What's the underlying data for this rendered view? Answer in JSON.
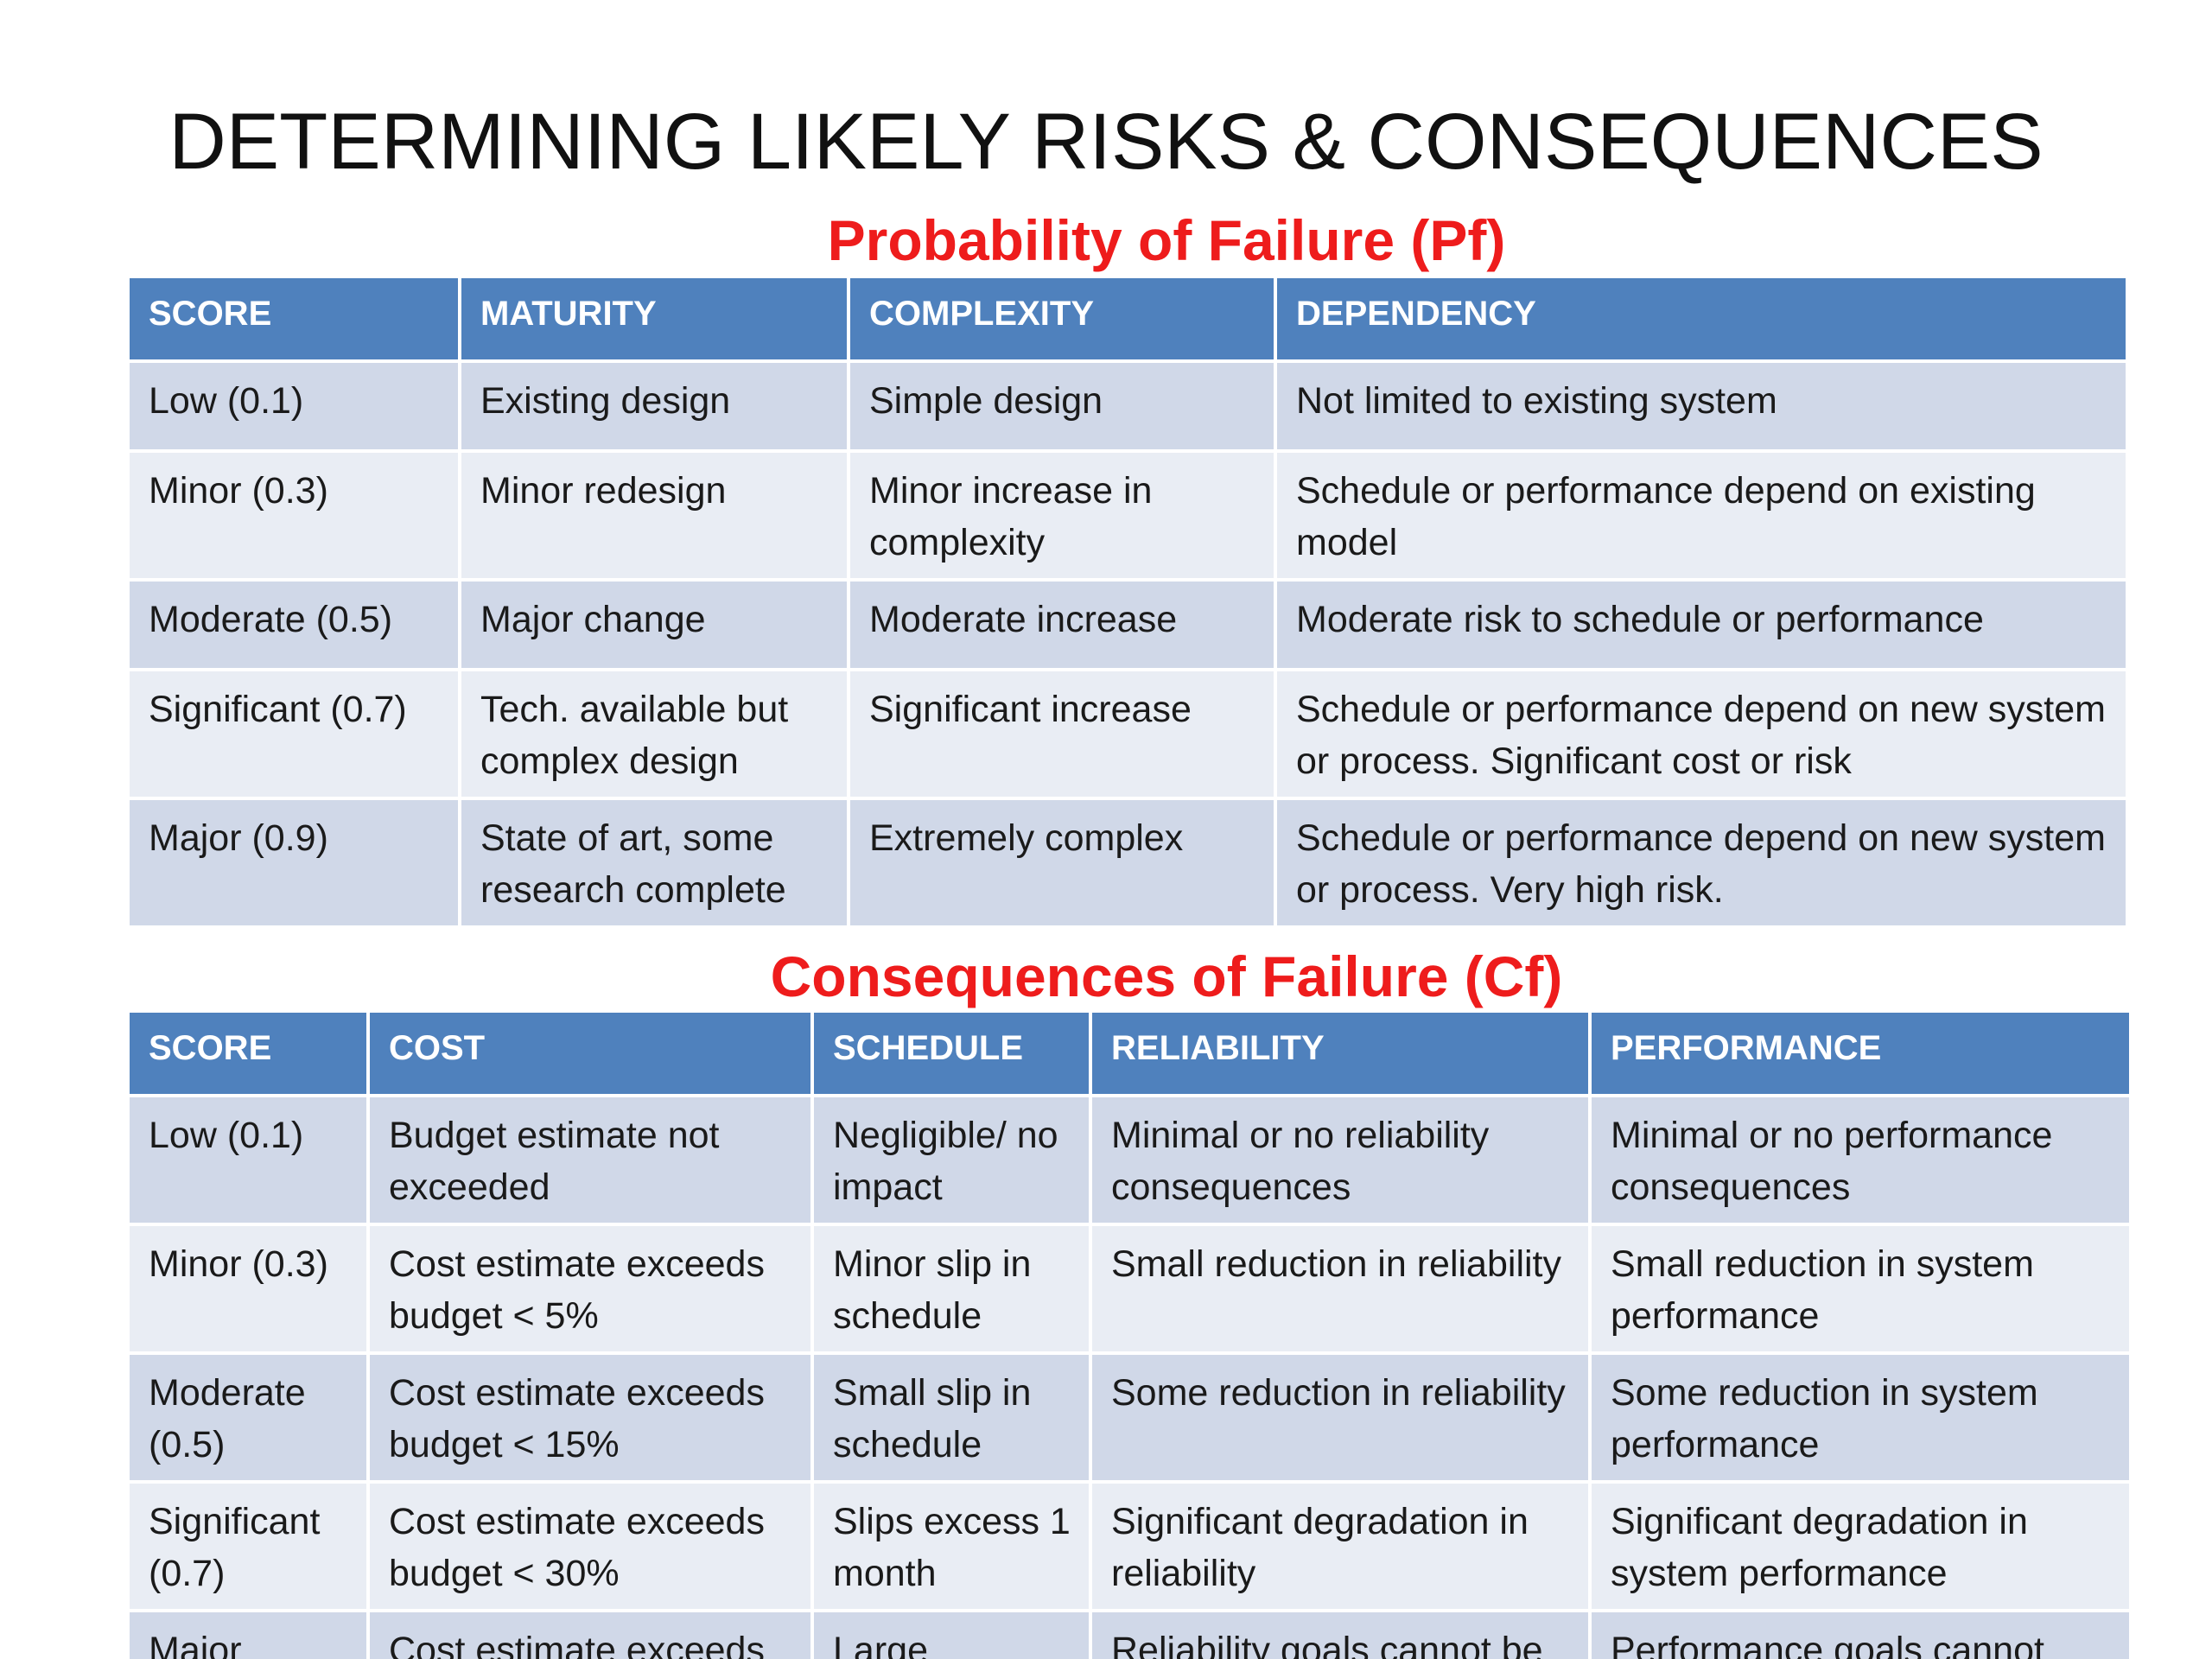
{
  "title": "DETERMINING LIKELY RISKS & CONSEQUENCES",
  "probability": {
    "heading": "Probability of Failure (Pf)",
    "columns": [
      "SCORE",
      "MATURITY",
      "COMPLEXITY",
      "DEPENDENCY"
    ],
    "rows": [
      [
        "Low (0.1)",
        "Existing design",
        "Simple design",
        "Not limited to existing system"
      ],
      [
        "Minor (0.3)",
        "Minor redesign",
        "Minor increase in complexity",
        "Schedule or performance depend on existing model"
      ],
      [
        "Moderate (0.5)",
        "Major change",
        "Moderate increase",
        "Moderate risk to schedule or performance"
      ],
      [
        "Significant (0.7)",
        "Tech. available but complex design",
        "Significant increase",
        "Schedule or performance depend on new system or process. Significant cost or risk"
      ],
      [
        "Major (0.9)",
        "State of art, some research complete",
        "Extremely complex",
        "Schedule or performance depend on new system or process. Very high risk."
      ]
    ]
  },
  "consequences": {
    "heading": "Consequences of Failure (Cf)",
    "columns": [
      "SCORE",
      "COST",
      "SCHEDULE",
      "RELIABILITY",
      "PERFORMANCE"
    ],
    "rows": [
      [
        "Low (0.1)",
        "Budget estimate not exceeded",
        "Negligible/ no impact",
        "Minimal or no reliability consequences",
        "Minimal or no performance consequences"
      ],
      [
        "Minor (0.3)",
        "Cost estimate exceeds budget < 5%",
        "Minor slip in schedule",
        "Small reduction in reliability",
        "Small reduction in system performance"
      ],
      [
        "Moderate (0.5)",
        "Cost estimate exceeds budget < 15%",
        "Small slip in schedule",
        "Some reduction in reliability",
        "Some reduction in system performance"
      ],
      [
        "Significant (0.7)",
        "Cost estimate exceeds budget < 30%",
        "Slips excess 1 month",
        "Significant degradation in reliability",
        "Significant degradation in system performance"
      ],
      [
        "Major",
        "Cost estimate exceeds",
        "Large",
        "Reliability goals cannot be",
        "Performance goals cannot"
      ]
    ]
  }
}
